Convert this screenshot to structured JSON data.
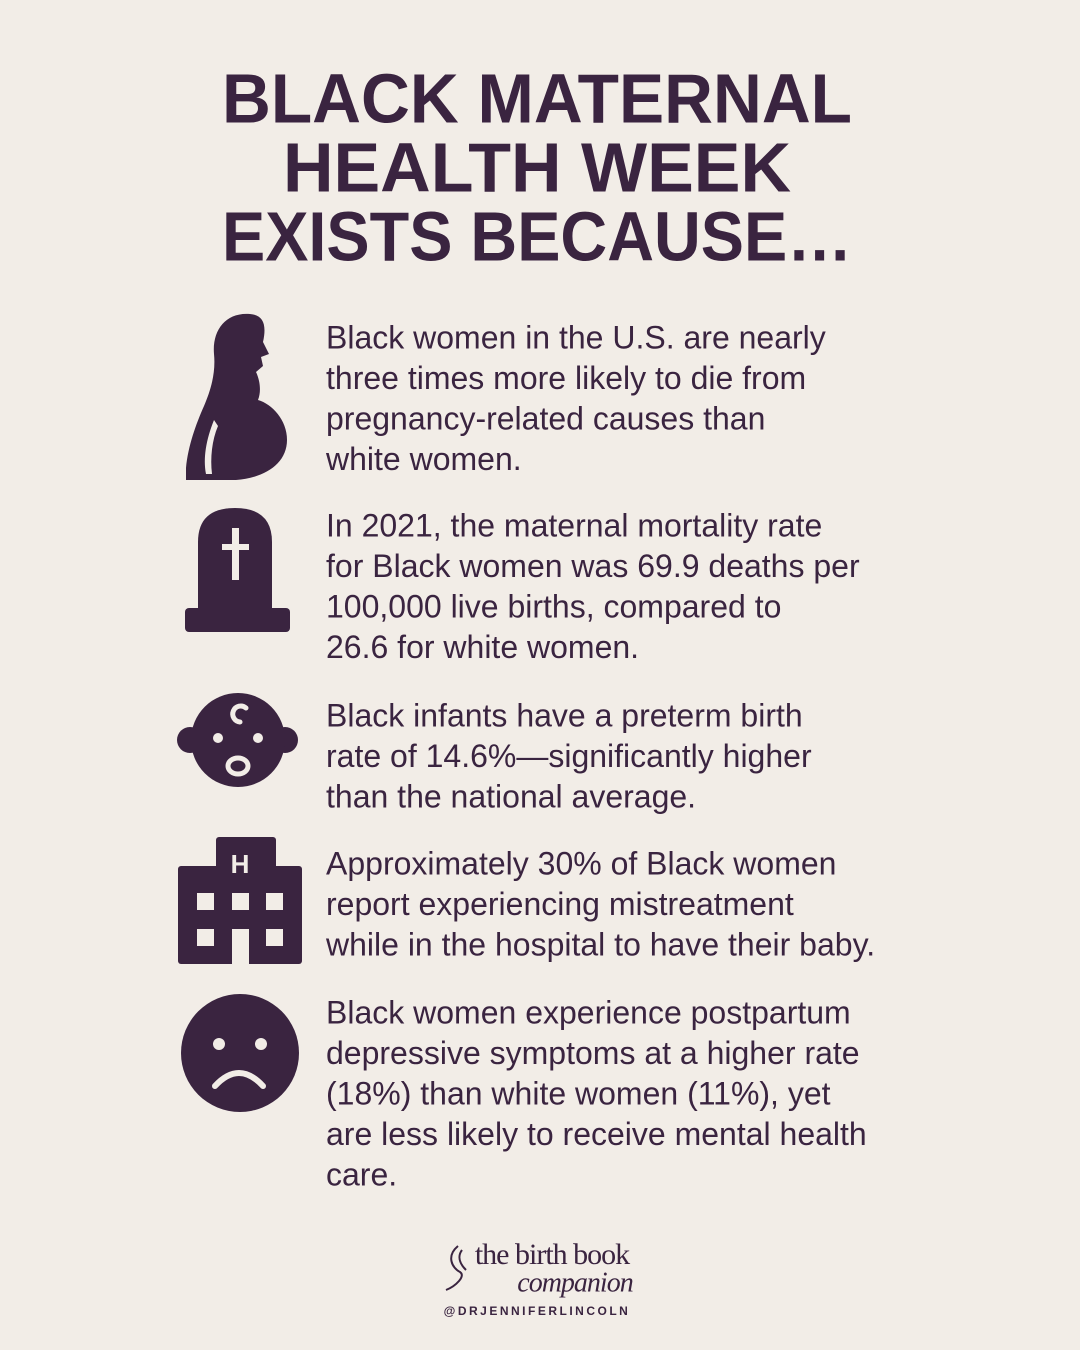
{
  "header": {
    "title_lines": [
      "BLACK MATERNAL",
      "HEALTH WEEK",
      "EXISTS BECAUSE…"
    ]
  },
  "items": [
    {
      "lines": [
        "Black women in the U.S. are nearly",
        "three times more likely to die from",
        "pregnancy-related causes than",
        "white women."
      ]
    },
    {
      "lines": [
        "In 2021, the maternal mortality rate",
        "for Black women was 69.9 deaths per",
        "100,000 live births, compared to",
        "26.6 for white women."
      ]
    },
    {
      "lines": [
        "Black infants have a preterm birth",
        "rate of 14.6%—significantly higher",
        "than the national average."
      ]
    },
    {
      "lines": [
        "Approximately 30% of Black women",
        "report experiencing mistreatment",
        "while in the hospital to have their baby."
      ]
    },
    {
      "lines": [
        "Black women experience postpartum",
        "depressive symptoms at a higher rate",
        "(18%) than white women (11%), yet",
        "are less likely to receive mental health",
        "care."
      ]
    }
  ],
  "footer": {
    "brand_line1": "the birth book",
    "brand_line2": "companion",
    "handle": "@DRJENNIFERLINCOLN"
  }
}
